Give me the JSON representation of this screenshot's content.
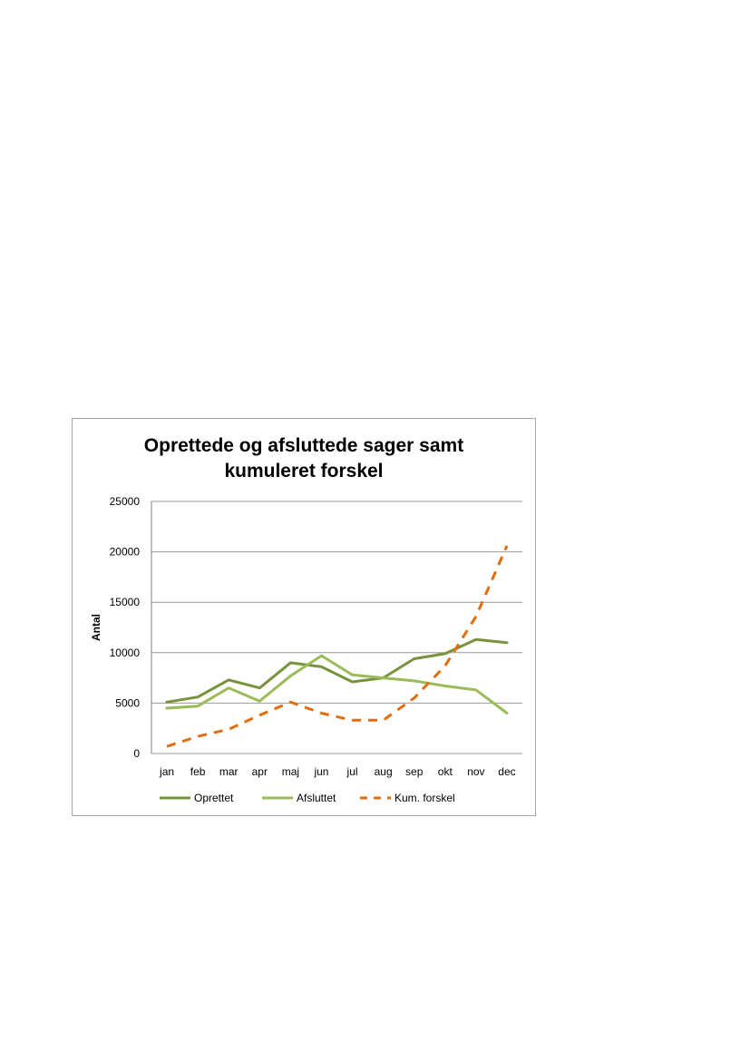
{
  "chart_data": {
    "type": "line",
    "title_line1": "Oprettede og afsluttede sager samt",
    "title_line2": "kumuleret forskel",
    "ylabel": "Antal",
    "xlabel": "",
    "ylim": [
      0,
      25000
    ],
    "yticks": [
      0,
      5000,
      10000,
      15000,
      20000,
      25000
    ],
    "grid": true,
    "legend_position": "bottom",
    "categories": [
      "jan",
      "feb",
      "mar",
      "apr",
      "maj",
      "jun",
      "jul",
      "aug",
      "sep",
      "okt",
      "nov",
      "dec"
    ],
    "series": [
      {
        "name": "Oprettet",
        "color": "#77933c",
        "dash": "solid",
        "values": [
          5100,
          5600,
          7300,
          6500,
          9000,
          8600,
          7100,
          7500,
          9400,
          9900,
          11300,
          11000
        ]
      },
      {
        "name": "Afsluttet",
        "color": "#9bbb59",
        "dash": "solid",
        "values": [
          4500,
          4700,
          6500,
          5200,
          7700,
          9700,
          7800,
          7500,
          7200,
          6700,
          6300,
          4000
        ]
      },
      {
        "name": "Kum. forskel",
        "color": "#e46c0a",
        "dash": "dashed",
        "values": [
          700,
          1700,
          2400,
          3800,
          5100,
          4000,
          3300,
          3300,
          5500,
          8700,
          13600,
          20600
        ]
      }
    ]
  }
}
